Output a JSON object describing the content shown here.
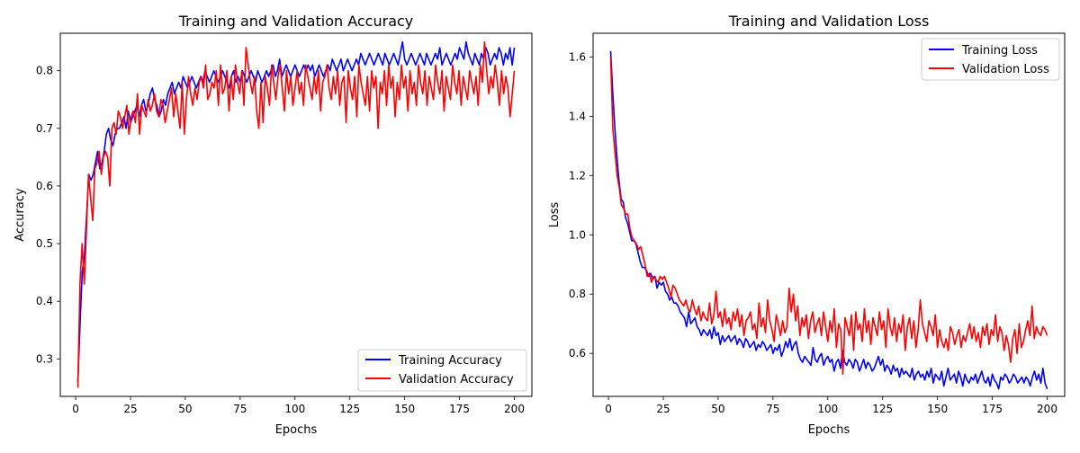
{
  "chart_data": [
    {
      "type": "line",
      "title": "Training and Validation Accuracy",
      "xlabel": "Epochs",
      "ylabel": "Accuracy",
      "xlim": [
        -7,
        208
      ],
      "ylim": [
        0.235,
        0.865
      ],
      "xticks": [
        0,
        25,
        50,
        75,
        100,
        125,
        150,
        175,
        200
      ],
      "xtick_labels": [
        "0",
        "25",
        "50",
        "75",
        "100",
        "125",
        "150",
        "175",
        "200"
      ],
      "yticks": [
        0.3,
        0.4,
        0.5,
        0.6,
        0.7,
        0.8
      ],
      "ytick_labels": [
        "0.3",
        "0.4",
        "0.5",
        "0.6",
        "0.7",
        "0.8"
      ],
      "grid": false,
      "legend_position": "bottom-right",
      "x_start": 1,
      "x_end": 200,
      "series": [
        {
          "name": "Training Accuracy",
          "color": "#0000ff",
          "values": [
            0.26,
            0.36,
            0.45,
            0.48,
            0.55,
            0.62,
            0.61,
            0.62,
            0.64,
            0.66,
            0.63,
            0.64,
            0.66,
            0.69,
            0.7,
            0.68,
            0.67,
            0.69,
            0.7,
            0.7,
            0.71,
            0.72,
            0.7,
            0.73,
            0.71,
            0.72,
            0.73,
            0.74,
            0.72,
            0.74,
            0.75,
            0.73,
            0.74,
            0.76,
            0.77,
            0.75,
            0.74,
            0.72,
            0.73,
            0.75,
            0.74,
            0.76,
            0.77,
            0.78,
            0.76,
            0.77,
            0.78,
            0.77,
            0.79,
            0.78,
            0.77,
            0.78,
            0.79,
            0.78,
            0.77,
            0.78,
            0.79,
            0.78,
            0.8,
            0.79,
            0.78,
            0.79,
            0.8,
            0.79,
            0.78,
            0.79,
            0.8,
            0.79,
            0.78,
            0.77,
            0.79,
            0.8,
            0.78,
            0.79,
            0.78,
            0.8,
            0.79,
            0.78,
            0.79,
            0.8,
            0.79,
            0.78,
            0.8,
            0.79,
            0.78,
            0.79,
            0.8,
            0.79,
            0.8,
            0.81,
            0.79,
            0.8,
            0.82,
            0.79,
            0.8,
            0.81,
            0.8,
            0.79,
            0.8,
            0.81,
            0.8,
            0.79,
            0.8,
            0.81,
            0.8,
            0.81,
            0.8,
            0.81,
            0.79,
            0.8,
            0.81,
            0.8,
            0.79,
            0.8,
            0.81,
            0.8,
            0.82,
            0.81,
            0.8,
            0.81,
            0.82,
            0.8,
            0.81,
            0.82,
            0.81,
            0.8,
            0.81,
            0.82,
            0.81,
            0.83,
            0.82,
            0.81,
            0.82,
            0.83,
            0.82,
            0.81,
            0.82,
            0.83,
            0.82,
            0.81,
            0.83,
            0.82,
            0.81,
            0.82,
            0.83,
            0.82,
            0.81,
            0.83,
            0.85,
            0.82,
            0.81,
            0.82,
            0.83,
            0.82,
            0.81,
            0.82,
            0.83,
            0.82,
            0.81,
            0.83,
            0.82,
            0.81,
            0.82,
            0.83,
            0.82,
            0.84,
            0.81,
            0.82,
            0.83,
            0.82,
            0.81,
            0.82,
            0.83,
            0.82,
            0.84,
            0.83,
            0.82,
            0.85,
            0.83,
            0.82,
            0.81,
            0.83,
            0.82,
            0.81,
            0.83,
            0.82,
            0.84,
            0.83,
            0.81,
            0.82,
            0.83,
            0.82,
            0.84,
            0.83,
            0.81,
            0.83,
            0.82,
            0.84,
            0.81,
            0.84
          ]
        },
        {
          "name": "Validation Accuracy",
          "color": "#ff0000",
          "values": [
            0.25,
            0.43,
            0.5,
            0.43,
            0.52,
            0.62,
            0.58,
            0.54,
            0.63,
            0.64,
            0.66,
            0.62,
            0.65,
            0.66,
            0.65,
            0.6,
            0.7,
            0.71,
            0.69,
            0.73,
            0.72,
            0.7,
            0.72,
            0.74,
            0.69,
            0.72,
            0.73,
            0.71,
            0.76,
            0.69,
            0.74,
            0.73,
            0.72,
            0.75,
            0.73,
            0.74,
            0.76,
            0.73,
            0.72,
            0.75,
            0.74,
            0.71,
            0.73,
            0.75,
            0.77,
            0.72,
            0.76,
            0.73,
            0.7,
            0.78,
            0.69,
            0.75,
            0.79,
            0.76,
            0.74,
            0.77,
            0.75,
            0.78,
            0.79,
            0.77,
            0.81,
            0.75,
            0.76,
            0.78,
            0.77,
            0.8,
            0.74,
            0.81,
            0.76,
            0.77,
            0.8,
            0.73,
            0.79,
            0.75,
            0.81,
            0.78,
            0.76,
            0.8,
            0.74,
            0.84,
            0.81,
            0.78,
            0.76,
            0.79,
            0.73,
            0.7,
            0.78,
            0.71,
            0.79,
            0.77,
            0.74,
            0.81,
            0.78,
            0.75,
            0.79,
            0.81,
            0.77,
            0.73,
            0.8,
            0.76,
            0.79,
            0.74,
            0.77,
            0.8,
            0.76,
            0.78,
            0.74,
            0.81,
            0.79,
            0.77,
            0.75,
            0.79,
            0.76,
            0.8,
            0.73,
            0.78,
            0.79,
            0.81,
            0.77,
            0.75,
            0.79,
            0.76,
            0.8,
            0.74,
            0.78,
            0.79,
            0.71,
            0.8,
            0.77,
            0.75,
            0.79,
            0.72,
            0.81,
            0.78,
            0.76,
            0.74,
            0.79,
            0.73,
            0.8,
            0.77,
            0.79,
            0.7,
            0.78,
            0.76,
            0.8,
            0.74,
            0.81,
            0.77,
            0.79,
            0.72,
            0.78,
            0.75,
            0.81,
            0.77,
            0.79,
            0.73,
            0.8,
            0.76,
            0.78,
            0.74,
            0.81,
            0.78,
            0.76,
            0.8,
            0.74,
            0.79,
            0.77,
            0.75,
            0.81,
            0.78,
            0.76,
            0.8,
            0.73,
            0.79,
            0.77,
            0.75,
            0.81,
            0.78,
            0.76,
            0.8,
            0.74,
            0.79,
            0.77,
            0.75,
            0.8,
            0.78,
            0.76,
            0.79,
            0.74,
            0.81,
            0.78,
            0.85,
            0.8,
            0.76,
            0.79,
            0.77,
            0.81,
            0.78,
            0.74,
            0.8,
            0.76,
            0.79,
            0.77,
            0.72,
            0.76,
            0.8
          ]
        }
      ]
    },
    {
      "type": "line",
      "title": "Training and Validation Loss",
      "xlabel": "Epochs",
      "ylabel": "Loss",
      "xlim": [
        -7,
        208
      ],
      "ylim": [
        0.455,
        1.68
      ],
      "xticks": [
        0,
        25,
        50,
        75,
        100,
        125,
        150,
        175,
        200
      ],
      "xtick_labels": [
        "0",
        "25",
        "50",
        "75",
        "100",
        "125",
        "150",
        "175",
        "200"
      ],
      "yticks": [
        0.6,
        0.8,
        1.0,
        1.2,
        1.4,
        1.6
      ],
      "ytick_labels": [
        "0.6",
        "0.8",
        "1.0",
        "1.2",
        "1.4",
        "1.6"
      ],
      "grid": false,
      "legend_position": "top-right",
      "x_start": 1,
      "x_end": 200,
      "series": [
        {
          "name": "Training Loss",
          "color": "#0000ff",
          "values": [
            1.62,
            1.48,
            1.36,
            1.26,
            1.18,
            1.12,
            1.11,
            1.06,
            1.04,
            1.01,
            0.98,
            0.98,
            0.97,
            0.94,
            0.91,
            0.89,
            0.89,
            0.88,
            0.86,
            0.87,
            0.85,
            0.86,
            0.82,
            0.84,
            0.83,
            0.84,
            0.81,
            0.8,
            0.78,
            0.79,
            0.77,
            0.77,
            0.76,
            0.74,
            0.73,
            0.72,
            0.69,
            0.74,
            0.7,
            0.71,
            0.72,
            0.69,
            0.68,
            0.66,
            0.68,
            0.67,
            0.66,
            0.68,
            0.65,
            0.69,
            0.66,
            0.67,
            0.63,
            0.66,
            0.64,
            0.65,
            0.66,
            0.64,
            0.65,
            0.66,
            0.63,
            0.65,
            0.64,
            0.62,
            0.65,
            0.64,
            0.62,
            0.63,
            0.64,
            0.61,
            0.63,
            0.62,
            0.64,
            0.63,
            0.61,
            0.62,
            0.63,
            0.6,
            0.62,
            0.61,
            0.63,
            0.59,
            0.61,
            0.64,
            0.62,
            0.65,
            0.61,
            0.63,
            0.64,
            0.6,
            0.58,
            0.57,
            0.59,
            0.58,
            0.57,
            0.56,
            0.62,
            0.58,
            0.57,
            0.59,
            0.6,
            0.56,
            0.58,
            0.59,
            0.57,
            0.58,
            0.54,
            0.57,
            0.58,
            0.55,
            0.61,
            0.57,
            0.56,
            0.58,
            0.57,
            0.55,
            0.58,
            0.57,
            0.54,
            0.56,
            0.58,
            0.55,
            0.57,
            0.56,
            0.54,
            0.55,
            0.57,
            0.59,
            0.56,
            0.58,
            0.54,
            0.56,
            0.55,
            0.53,
            0.56,
            0.54,
            0.55,
            0.52,
            0.55,
            0.53,
            0.54,
            0.53,
            0.52,
            0.55,
            0.51,
            0.53,
            0.54,
            0.52,
            0.53,
            0.51,
            0.54,
            0.52,
            0.55,
            0.5,
            0.53,
            0.52,
            0.51,
            0.54,
            0.49,
            0.52,
            0.55,
            0.51,
            0.52,
            0.53,
            0.5,
            0.54,
            0.52,
            0.49,
            0.53,
            0.51,
            0.5,
            0.52,
            0.51,
            0.53,
            0.5,
            0.52,
            0.54,
            0.51,
            0.5,
            0.52,
            0.49,
            0.53,
            0.51,
            0.5,
            0.48,
            0.52,
            0.51,
            0.53,
            0.52,
            0.5,
            0.51,
            0.53,
            0.52,
            0.5,
            0.51,
            0.52,
            0.5,
            0.52,
            0.51,
            0.49,
            0.52,
            0.54,
            0.51,
            0.53,
            0.5,
            0.55,
            0.5,
            0.48
          ]
        },
        {
          "name": "Validation Loss",
          "color": "#ff0000",
          "values": [
            1.6,
            1.36,
            1.28,
            1.2,
            1.16,
            1.1,
            1.09,
            1.07,
            1.07,
            1.02,
            0.99,
            0.98,
            0.97,
            0.95,
            0.96,
            0.93,
            0.9,
            0.86,
            0.87,
            0.84,
            0.86,
            0.85,
            0.84,
            0.86,
            0.85,
            0.86,
            0.84,
            0.82,
            0.79,
            0.83,
            0.82,
            0.8,
            0.78,
            0.77,
            0.76,
            0.78,
            0.75,
            0.74,
            0.78,
            0.75,
            0.73,
            0.76,
            0.71,
            0.74,
            0.72,
            0.71,
            0.77,
            0.7,
            0.73,
            0.81,
            0.72,
            0.74,
            0.69,
            0.75,
            0.7,
            0.72,
            0.68,
            0.74,
            0.71,
            0.75,
            0.69,
            0.73,
            0.66,
            0.71,
            0.72,
            0.74,
            0.68,
            0.7,
            0.65,
            0.77,
            0.69,
            0.72,
            0.67,
            0.78,
            0.71,
            0.68,
            0.64,
            0.73,
            0.7,
            0.66,
            0.71,
            0.67,
            0.69,
            0.82,
            0.74,
            0.8,
            0.71,
            0.76,
            0.66,
            0.72,
            0.69,
            0.73,
            0.65,
            0.71,
            0.74,
            0.67,
            0.7,
            0.72,
            0.66,
            0.74,
            0.69,
            0.64,
            0.71,
            0.67,
            0.75,
            0.62,
            0.7,
            0.68,
            0.53,
            0.72,
            0.69,
            0.66,
            0.73,
            0.61,
            0.74,
            0.68,
            0.7,
            0.64,
            0.75,
            0.67,
            0.71,
            0.63,
            0.72,
            0.69,
            0.66,
            0.74,
            0.68,
            0.71,
            0.62,
            0.75,
            0.69,
            0.66,
            0.72,
            0.64,
            0.7,
            0.67,
            0.73,
            0.61,
            0.69,
            0.72,
            0.65,
            0.71,
            0.62,
            0.68,
            0.78,
            0.7,
            0.67,
            0.64,
            0.71,
            0.69,
            0.66,
            0.73,
            0.62,
            0.68,
            0.64,
            0.62,
            0.65,
            0.61,
            0.69,
            0.67,
            0.63,
            0.66,
            0.68,
            0.62,
            0.66,
            0.64,
            0.67,
            0.7,
            0.65,
            0.69,
            0.64,
            0.67,
            0.62,
            0.69,
            0.66,
            0.7,
            0.63,
            0.68,
            0.66,
            0.73,
            0.64,
            0.69,
            0.67,
            0.61,
            0.66,
            0.63,
            0.57,
            0.65,
            0.68,
            0.6,
            0.7,
            0.62,
            0.64,
            0.68,
            0.71,
            0.66,
            0.76,
            0.65,
            0.69,
            0.67,
            0.66,
            0.69,
            0.68,
            0.66
          ]
        }
      ]
    }
  ]
}
